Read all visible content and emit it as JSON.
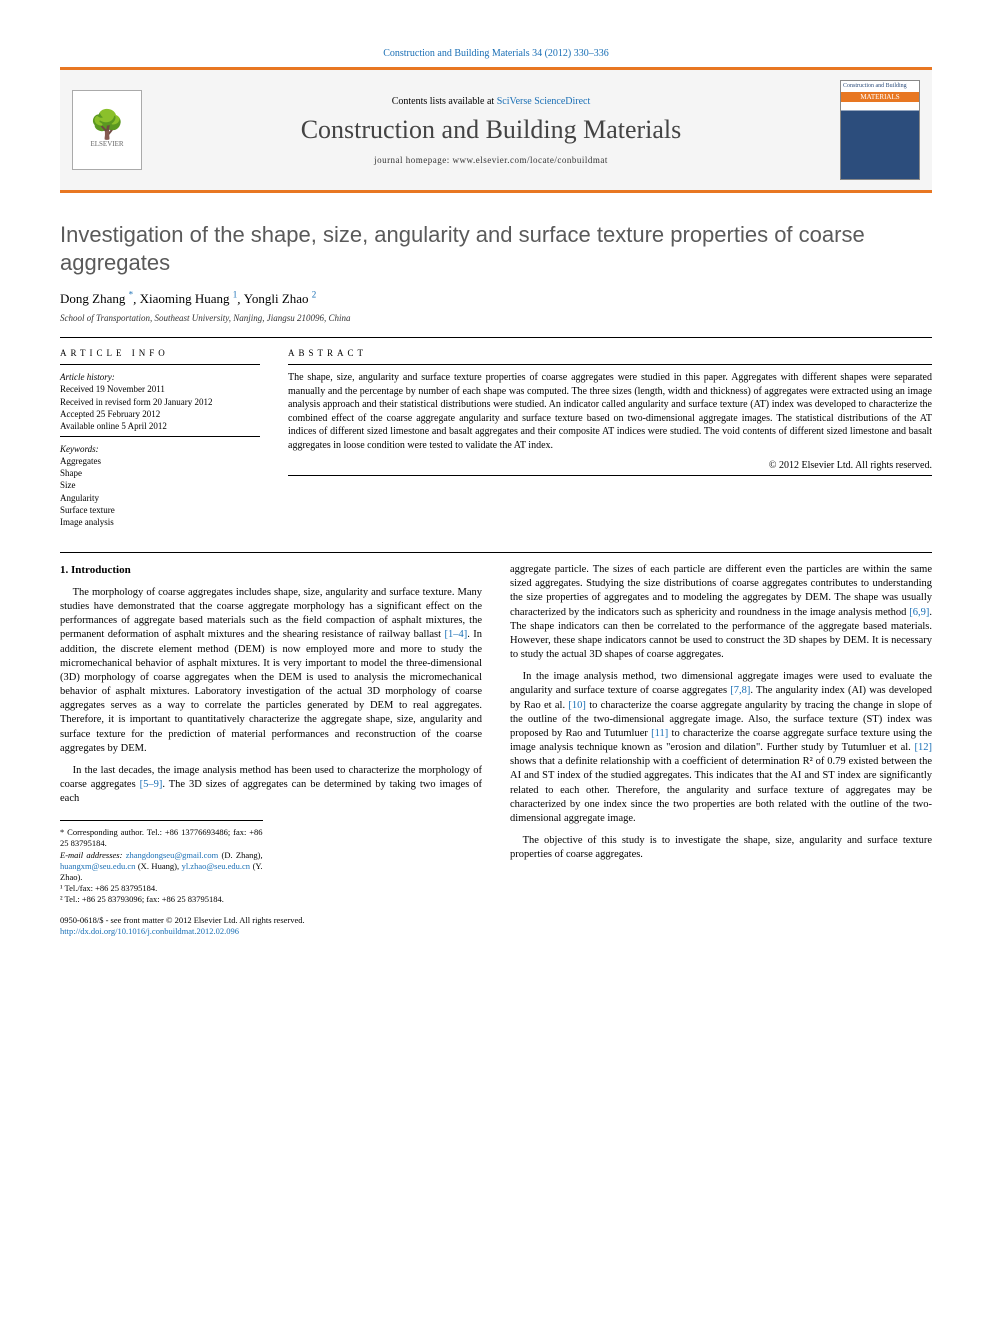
{
  "header_citation": "Construction and Building Materials 34 (2012) 330–336",
  "topbar": {
    "contents_prefix": "Contents lists available at ",
    "contents_link": "SciVerse ScienceDirect",
    "journal_name": "Construction and Building Materials",
    "homepage_prefix": "journal homepage: ",
    "homepage_url": "www.elsevier.com/locate/conbuildmat",
    "publisher": "ELSEVIER",
    "cover_top": "Construction and Building",
    "cover_mat": "MATERIALS"
  },
  "title": "Investigation of the shape, size, angularity and surface texture properties of coarse aggregates",
  "authors": [
    {
      "name": "Dong Zhang",
      "marks": "*"
    },
    {
      "name": "Xiaoming Huang",
      "marks": "1"
    },
    {
      "name": "Yongli Zhao",
      "marks": "2"
    }
  ],
  "affiliation": "School of Transportation, Southeast University, Nanjing, Jiangsu 210096, China",
  "article_info": {
    "label": "ARTICLE INFO",
    "history_label": "Article history:",
    "history": [
      "Received 19 November 2011",
      "Received in revised form 20 January 2012",
      "Accepted 25 February 2012",
      "Available online 5 April 2012"
    ],
    "keywords_label": "Keywords:",
    "keywords": [
      "Aggregates",
      "Shape",
      "Size",
      "Angularity",
      "Surface texture",
      "Image analysis"
    ]
  },
  "abstract": {
    "label": "ABSTRACT",
    "text": "The shape, size, angularity and surface texture properties of coarse aggregates were studied in this paper. Aggregates with different shapes were separated manually and the percentage by number of each shape was computed. The three sizes (length, width and thickness) of aggregates were extracted using an image analysis approach and their statistical distributions were studied. An indicator called angularity and surface texture (AT) index was developed to characterize the combined effect of the coarse aggregate angularity and surface texture based on two-dimensional aggregate images. The statistical distributions of the AT indices of different sized limestone and basalt aggregates and their composite AT indices were studied. The void contents of different sized limestone and basalt aggregates in loose condition were tested to validate the AT index.",
    "copyright": "© 2012 Elsevier Ltd. All rights reserved."
  },
  "body": {
    "section_heading": "1. Introduction",
    "p1a": "The morphology of coarse aggregates includes shape, size, angularity and surface texture. Many studies have demonstrated that the coarse aggregate morphology has a significant effect on the performances of aggregate based materials such as the field compaction of asphalt mixtures, the permanent deformation of asphalt mixtures and the shearing resistance of railway ballast ",
    "ref1": "[1–4]",
    "p1b": ". In addition, the discrete element method (DEM) is now employed more and more to study the micromechanical behavior of asphalt mixtures. It is very important to model the three-dimensional (3D) morphology of coarse aggregates when the DEM is used to analysis the micromechanical behavior of asphalt mixtures. Laboratory investigation of the actual 3D morphology of coarse aggregates serves as a way to correlate the particles generated by DEM to real aggregates. Therefore, it is important to quantitatively characterize the aggregate shape, size, angularity and surface texture for the prediction of material performances and reconstruction of the coarse aggregates by DEM.",
    "p2a": "In the last decades, the image analysis method has been used to characterize the morphology of coarse aggregates ",
    "ref2": "[5–9]",
    "p2b": ". The 3D sizes of aggregates can be determined by taking two images of each",
    "p3a": "aggregate particle. The sizes of each particle are different even the particles are within the same sized aggregates. Studying the size distributions of coarse aggregates contributes to understanding the size properties of aggregates and to modeling the aggregates by DEM. The shape was usually characterized by the indicators such as sphericity and roundness in the image analysis method ",
    "ref3": "[6,9]",
    "p3b": ". The shape indicators can then be correlated to the performance of the aggregate based materials. However, these shape indicators cannot be used to construct the 3D shapes by DEM. It is necessary to study the actual 3D shapes of coarse aggregates.",
    "p4a": "In the image analysis method, two dimensional aggregate images were used to evaluate the angularity and surface texture of coarse aggregates ",
    "ref4": "[7,8]",
    "p4b": ". The angularity index (AI) was developed by Rao et al. ",
    "ref5": "[10]",
    "p4c": " to characterize the coarse aggregate angularity by tracing the change in slope of the outline of the two-dimensional aggregate image. Also, the surface texture (ST) index was proposed by Rao and Tutumluer ",
    "ref6": "[11]",
    "p4d": " to characterize the coarse aggregate surface texture using the image analysis technique known as \"erosion and dilation\". Further study by Tutumluer et al. ",
    "ref7": "[12]",
    "p4e": " shows that a definite relationship with a coefficient of determination R² of 0.79 existed between the AI and ST index of the studied aggregates. This indicates that the AI and ST index are significantly related to each other. Therefore, the angularity and surface texture of aggregates may be characterized by one index since the two properties are both related with the outline of the two-dimensional aggregate image.",
    "p5": "The objective of this study is to investigate the shape, size, angularity and surface texture properties of coarse aggregates."
  },
  "footnotes": {
    "corr": "* Corresponding author. Tel.: +86 13776693486; fax: +86 25 83795184.",
    "email_label": "E-mail addresses: ",
    "emails": [
      {
        "addr": "zhangdongseu@gmail.com",
        "who": "(D. Zhang)"
      },
      {
        "addr": "huangxm@seu.edu.cn",
        "who": "(X. Huang)"
      },
      {
        "addr": "yl.zhao@seu.edu.cn",
        "who": "(Y. Zhao)"
      }
    ],
    "n1": "¹ Tel./fax: +86 25 83795184.",
    "n2": "² Tel.: +86 25 83793096; fax: +86 25 83795184."
  },
  "bottom": {
    "issn": "0950-0618/$ - see front matter © 2012 Elsevier Ltd. All rights reserved.",
    "doi_url": "http://dx.doi.org/10.1016/j.conbuildmat.2012.02.096"
  },
  "colors": {
    "accent_orange": "#e87722",
    "link_blue": "#1a6fb5",
    "title_gray": "#5a5a5a",
    "cover_blue": "#2c4d7c"
  }
}
